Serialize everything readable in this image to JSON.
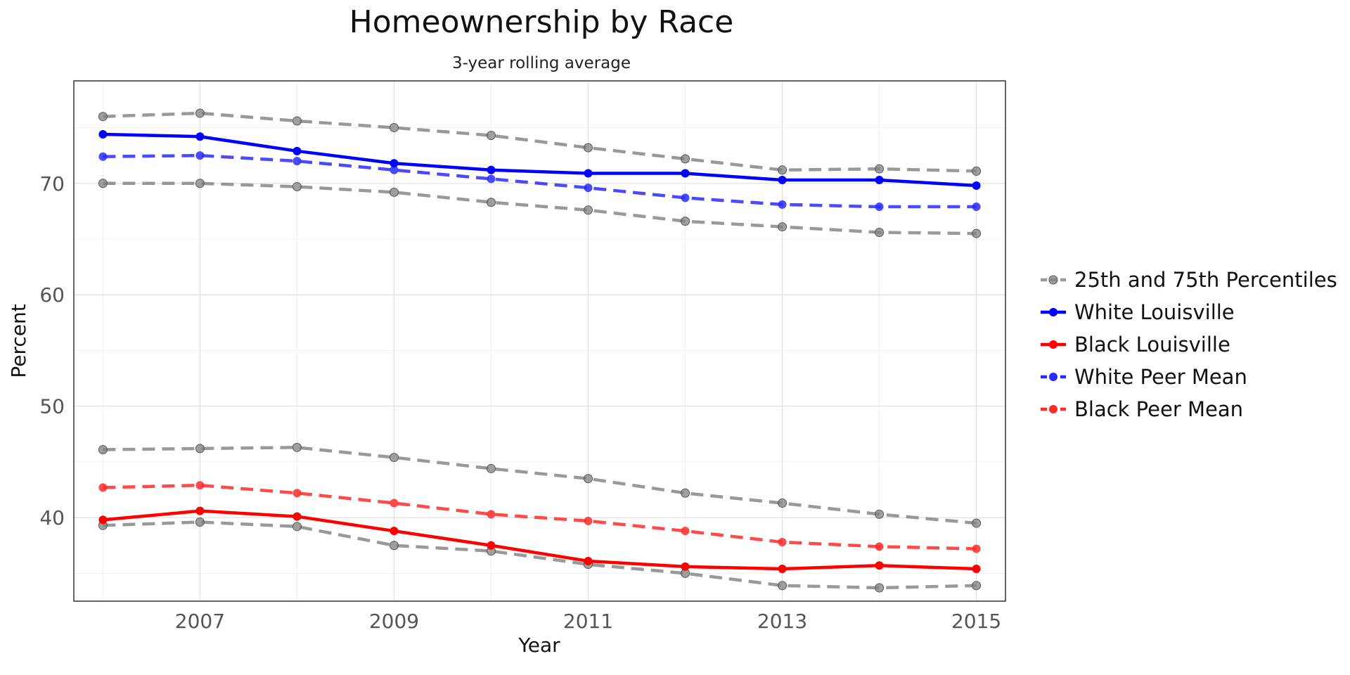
{
  "chart_data": {
    "type": "line",
    "title": "Homeownership by Race",
    "subtitle": "3-year rolling average",
    "xlabel": "Year",
    "ylabel": "Percent",
    "xlim": [
      2005.7,
      2015.3
    ],
    "ylim": [
      32.5,
      79.2
    ],
    "x_ticks": [
      2007,
      2009,
      2011,
      2013,
      2015
    ],
    "y_ticks": [
      40,
      50,
      60,
      70
    ],
    "grid": true,
    "legend_position": "right",
    "x": [
      2006,
      2007,
      2008,
      2009,
      2010,
      2011,
      2012,
      2013,
      2014,
      2015
    ],
    "series": [
      {
        "name": "25th and 75th Percentiles",
        "role": "white-p75",
        "color": "#808080",
        "dashed": true,
        "values": [
          76.0,
          76.3,
          75.6,
          75.0,
          74.3,
          73.2,
          72.2,
          71.2,
          71.3,
          71.1
        ]
      },
      {
        "name": "25th and 75th Percentiles",
        "role": "white-p25",
        "color": "#808080",
        "dashed": true,
        "values": [
          70.0,
          70.0,
          69.7,
          69.2,
          68.3,
          67.6,
          66.6,
          66.1,
          65.6,
          65.5
        ]
      },
      {
        "name": "25th and 75th Percentiles",
        "role": "black-p75",
        "color": "#808080",
        "dashed": true,
        "values": [
          46.1,
          46.2,
          46.3,
          45.4,
          44.4,
          43.5,
          42.2,
          41.3,
          40.3,
          39.5
        ]
      },
      {
        "name": "25th and 75th Percentiles",
        "role": "black-p25",
        "color": "#808080",
        "dashed": true,
        "values": [
          39.3,
          39.6,
          39.2,
          37.5,
          37.0,
          35.8,
          35.0,
          33.9,
          33.7,
          33.9
        ]
      },
      {
        "name": "White Peer Mean",
        "color": "#2a2aff",
        "dashed": true,
        "values": [
          72.4,
          72.5,
          72.0,
          71.2,
          70.4,
          69.6,
          68.7,
          68.1,
          67.9,
          67.9
        ]
      },
      {
        "name": "Black Peer Mean",
        "color": "#ff2a2a",
        "dashed": true,
        "values": [
          42.7,
          42.9,
          42.2,
          41.3,
          40.3,
          39.7,
          38.8,
          37.8,
          37.4,
          37.2
        ]
      },
      {
        "name": "White Louisville",
        "color": "#0000ff",
        "dashed": false,
        "values": [
          74.4,
          74.2,
          72.9,
          71.8,
          71.2,
          70.9,
          70.9,
          70.3,
          70.3,
          69.8
        ]
      },
      {
        "name": "Black Louisville",
        "color": "#ff0000",
        "dashed": false,
        "values": [
          39.8,
          40.6,
          40.1,
          38.8,
          37.5,
          36.1,
          35.6,
          35.4,
          35.7,
          35.4
        ]
      }
    ],
    "legend": [
      {
        "label": "25th and 75th Percentiles",
        "color": "#808080",
        "dashed": true
      },
      {
        "label": "White Louisville",
        "color": "#0000ff",
        "dashed": false
      },
      {
        "label": "Black Louisville",
        "color": "#ff0000",
        "dashed": false
      },
      {
        "label": "White Peer Mean",
        "color": "#2a2aff",
        "dashed": true
      },
      {
        "label": "Black Peer Mean",
        "color": "#ff2a2a",
        "dashed": true
      }
    ]
  }
}
